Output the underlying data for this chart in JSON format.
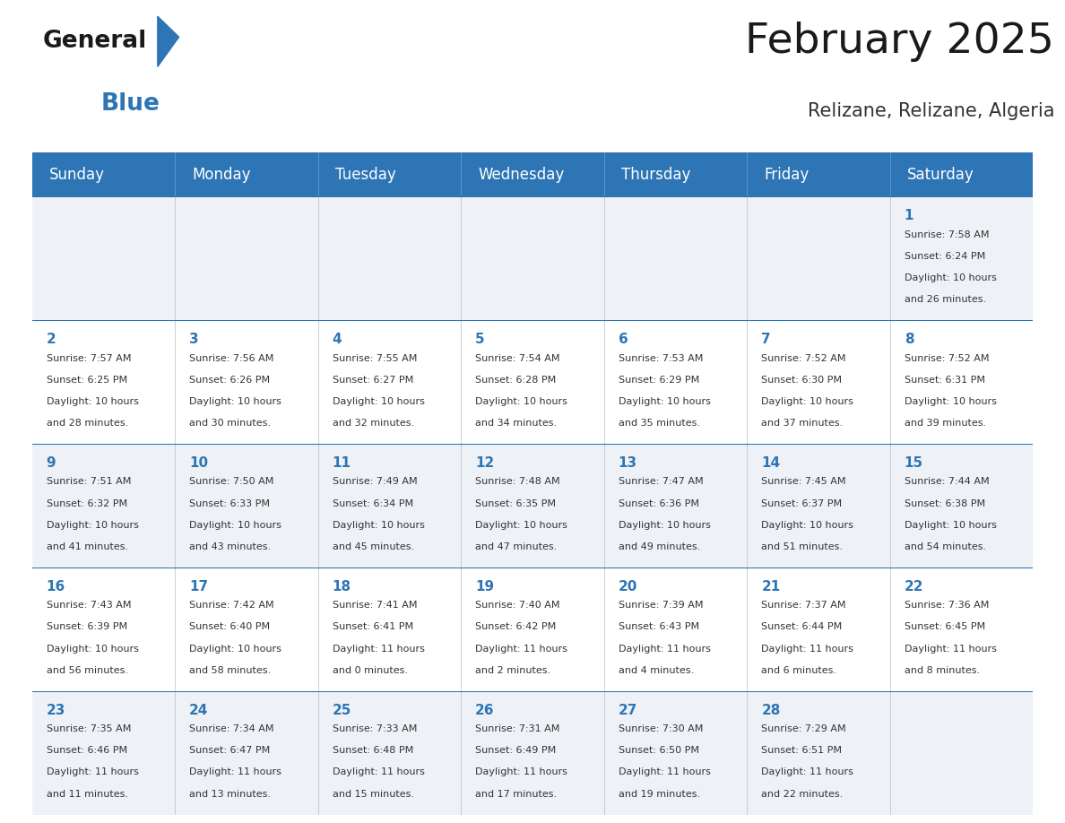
{
  "title": "February 2025",
  "subtitle": "Relizane, Relizane, Algeria",
  "header_bg_color": "#2E75B6",
  "header_text_color": "#FFFFFF",
  "cell_bg_color_odd": "#EEF2F7",
  "cell_bg_color_even": "#FFFFFF",
  "day_headers": [
    "Sunday",
    "Monday",
    "Tuesday",
    "Wednesday",
    "Thursday",
    "Friday",
    "Saturday"
  ],
  "title_color": "#1a1a1a",
  "subtitle_color": "#333333",
  "day_number_color": "#2E75B6",
  "info_color": "#333333",
  "divider_color": "#2E75B6",
  "logo_general_color": "#1a1a1a",
  "logo_blue_color": "#2E75B6",
  "weeks": [
    [
      null,
      null,
      null,
      null,
      null,
      null,
      1
    ],
    [
      2,
      3,
      4,
      5,
      6,
      7,
      8
    ],
    [
      9,
      10,
      11,
      12,
      13,
      14,
      15
    ],
    [
      16,
      17,
      18,
      19,
      20,
      21,
      22
    ],
    [
      23,
      24,
      25,
      26,
      27,
      28,
      null
    ]
  ],
  "day_data": {
    "1": {
      "sunrise": "7:58 AM",
      "sunset": "6:24 PM",
      "dl1": "Daylight: 10 hours",
      "dl2": "and 26 minutes."
    },
    "2": {
      "sunrise": "7:57 AM",
      "sunset": "6:25 PM",
      "dl1": "Daylight: 10 hours",
      "dl2": "and 28 minutes."
    },
    "3": {
      "sunrise": "7:56 AM",
      "sunset": "6:26 PM",
      "dl1": "Daylight: 10 hours",
      "dl2": "and 30 minutes."
    },
    "4": {
      "sunrise": "7:55 AM",
      "sunset": "6:27 PM",
      "dl1": "Daylight: 10 hours",
      "dl2": "and 32 minutes."
    },
    "5": {
      "sunrise": "7:54 AM",
      "sunset": "6:28 PM",
      "dl1": "Daylight: 10 hours",
      "dl2": "and 34 minutes."
    },
    "6": {
      "sunrise": "7:53 AM",
      "sunset": "6:29 PM",
      "dl1": "Daylight: 10 hours",
      "dl2": "and 35 minutes."
    },
    "7": {
      "sunrise": "7:52 AM",
      "sunset": "6:30 PM",
      "dl1": "Daylight: 10 hours",
      "dl2": "and 37 minutes."
    },
    "8": {
      "sunrise": "7:52 AM",
      "sunset": "6:31 PM",
      "dl1": "Daylight: 10 hours",
      "dl2": "and 39 minutes."
    },
    "9": {
      "sunrise": "7:51 AM",
      "sunset": "6:32 PM",
      "dl1": "Daylight: 10 hours",
      "dl2": "and 41 minutes."
    },
    "10": {
      "sunrise": "7:50 AM",
      "sunset": "6:33 PM",
      "dl1": "Daylight: 10 hours",
      "dl2": "and 43 minutes."
    },
    "11": {
      "sunrise": "7:49 AM",
      "sunset": "6:34 PM",
      "dl1": "Daylight: 10 hours",
      "dl2": "and 45 minutes."
    },
    "12": {
      "sunrise": "7:48 AM",
      "sunset": "6:35 PM",
      "dl1": "Daylight: 10 hours",
      "dl2": "and 47 minutes."
    },
    "13": {
      "sunrise": "7:47 AM",
      "sunset": "6:36 PM",
      "dl1": "Daylight: 10 hours",
      "dl2": "and 49 minutes."
    },
    "14": {
      "sunrise": "7:45 AM",
      "sunset": "6:37 PM",
      "dl1": "Daylight: 10 hours",
      "dl2": "and 51 minutes."
    },
    "15": {
      "sunrise": "7:44 AM",
      "sunset": "6:38 PM",
      "dl1": "Daylight: 10 hours",
      "dl2": "and 54 minutes."
    },
    "16": {
      "sunrise": "7:43 AM",
      "sunset": "6:39 PM",
      "dl1": "Daylight: 10 hours",
      "dl2": "and 56 minutes."
    },
    "17": {
      "sunrise": "7:42 AM",
      "sunset": "6:40 PM",
      "dl1": "Daylight: 10 hours",
      "dl2": "and 58 minutes."
    },
    "18": {
      "sunrise": "7:41 AM",
      "sunset": "6:41 PM",
      "dl1": "Daylight: 11 hours",
      "dl2": "and 0 minutes."
    },
    "19": {
      "sunrise": "7:40 AM",
      "sunset": "6:42 PM",
      "dl1": "Daylight: 11 hours",
      "dl2": "and 2 minutes."
    },
    "20": {
      "sunrise": "7:39 AM",
      "sunset": "6:43 PM",
      "dl1": "Daylight: 11 hours",
      "dl2": "and 4 minutes."
    },
    "21": {
      "sunrise": "7:37 AM",
      "sunset": "6:44 PM",
      "dl1": "Daylight: 11 hours",
      "dl2": "and 6 minutes."
    },
    "22": {
      "sunrise": "7:36 AM",
      "sunset": "6:45 PM",
      "dl1": "Daylight: 11 hours",
      "dl2": "and 8 minutes."
    },
    "23": {
      "sunrise": "7:35 AM",
      "sunset": "6:46 PM",
      "dl1": "Daylight: 11 hours",
      "dl2": "and 11 minutes."
    },
    "24": {
      "sunrise": "7:34 AM",
      "sunset": "6:47 PM",
      "dl1": "Daylight: 11 hours",
      "dl2": "and 13 minutes."
    },
    "25": {
      "sunrise": "7:33 AM",
      "sunset": "6:48 PM",
      "dl1": "Daylight: 11 hours",
      "dl2": "and 15 minutes."
    },
    "26": {
      "sunrise": "7:31 AM",
      "sunset": "6:49 PM",
      "dl1": "Daylight: 11 hours",
      "dl2": "and 17 minutes."
    },
    "27": {
      "sunrise": "7:30 AM",
      "sunset": "6:50 PM",
      "dl1": "Daylight: 11 hours",
      "dl2": "and 19 minutes."
    },
    "28": {
      "sunrise": "7:29 AM",
      "sunset": "6:51 PM",
      "dl1": "Daylight: 11 hours",
      "dl2": "and 22 minutes."
    }
  }
}
